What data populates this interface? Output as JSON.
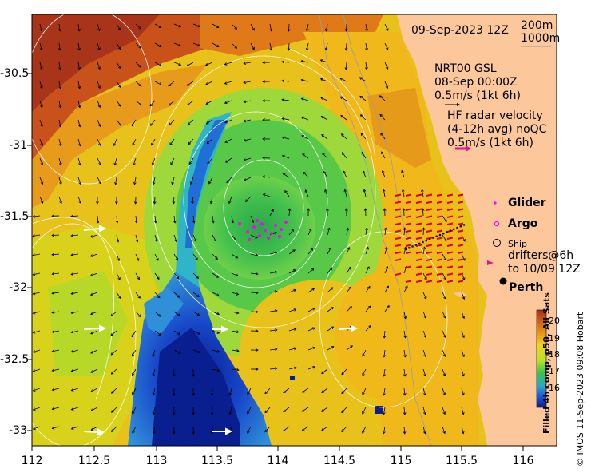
{
  "map": {
    "timestamp": "09-Sep-2023 12Z",
    "contours": [
      "200m",
      "1000m"
    ],
    "gsl": {
      "line1": "NRT00 GSL",
      "line2": "08-Sep 00:00Z",
      "line3": "0.5m/s (1kt 6h)"
    },
    "hf_radar": {
      "line1": "HF radar velocity",
      "line2": "(4-12h avg) noQC",
      "line3": "0.5m/s (1kt 6h)"
    },
    "legend": {
      "glider": "Glider",
      "argo": "Argo",
      "ship": "Ship",
      "drifters_line1": "drifters@6h",
      "drifters_line2": "to 10/09 12Z"
    },
    "city": "Perth",
    "colorbar": {
      "label": "Filled 4h comp, p50, All Sats",
      "ticks": [
        "20",
        "19",
        "18",
        "17",
        "16"
      ]
    },
    "credit": "© IMOS 11-Sep-2023 09:08 Hobart",
    "x_ticks": [
      "112",
      "112.5",
      "113",
      "113.5",
      "114",
      "114.5",
      "115",
      "115.5",
      "116"
    ],
    "y_ticks": [
      "-30.5",
      "-31",
      "-31.5",
      "-32",
      "-32.5",
      "-33"
    ],
    "colors": {
      "land": "#fcc79a",
      "glider": "#ff00ff",
      "hf_arrow": "#e0148c",
      "radar_vectors": "#e00000"
    }
  }
}
